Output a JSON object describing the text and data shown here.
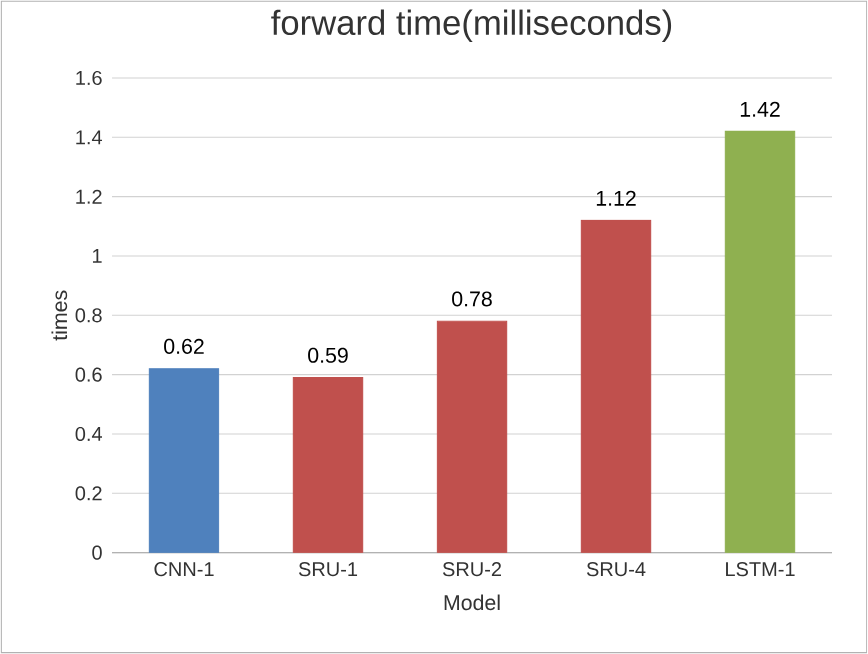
{
  "chart_data": {
    "type": "bar",
    "title": "forward time(milliseconds)",
    "xlabel": "Model",
    "ylabel": "times",
    "categories": [
      "CNN-1",
      "SRU-1",
      "SRU-2",
      "SRU-4",
      "LSTM-1"
    ],
    "values": [
      0.62,
      0.59,
      0.78,
      1.12,
      1.42
    ],
    "colors": [
      "#4f81bd",
      "#c0504d",
      "#c0504d",
      "#c0504d",
      "#8fb050"
    ],
    "ylim": [
      0,
      1.6
    ],
    "yticks": [
      0,
      0.2,
      0.4,
      0.6,
      0.8,
      1,
      1.2,
      1.4,
      1.6
    ],
    "grid": true,
    "data_labels": true
  }
}
